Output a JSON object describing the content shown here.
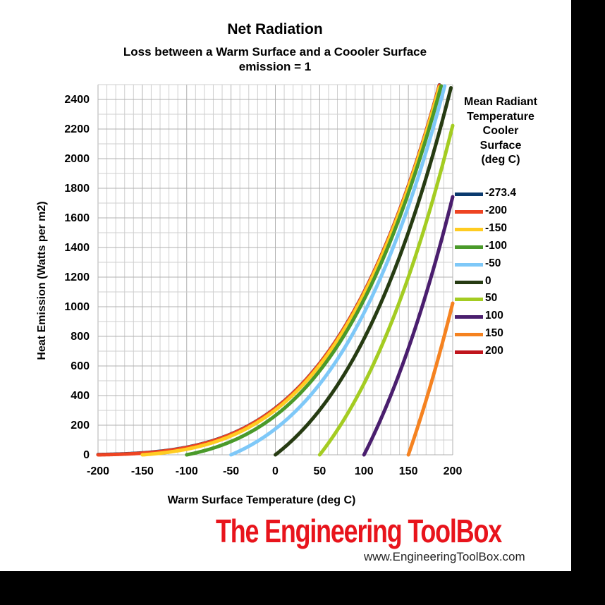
{
  "chart_data": {
    "type": "line",
    "title": "Net Radiation",
    "subtitle": "Loss between a Warm Surface and a Coooler Surface",
    "subtitle2": "emission = 1",
    "xlabel": "Warm Surface Temperature (deg C)",
    "ylabel": "Heat Emission (Watts per m2)",
    "xlim": [
      -200,
      200
    ],
    "ylim": [
      0,
      2500
    ],
    "x_ticks": [
      "-200",
      "-150",
      "-100",
      "-50",
      "0",
      "50",
      "100",
      "150",
      "200"
    ],
    "y_ticks": [
      "0",
      "200",
      "400",
      "600",
      "800",
      "1000",
      "1200",
      "1400",
      "1600",
      "1800",
      "2000",
      "2200",
      "2400"
    ],
    "grid": true,
    "legend_title": [
      "Mean Radiant",
      "Temperature",
      "Cooler",
      "Surface",
      "(deg C)"
    ],
    "legend_position": "right",
    "emissivity": 1,
    "series": [
      {
        "name": "-273.4",
        "cooler_temp_c": -273.4,
        "color": "#0a3a6e"
      },
      {
        "name": "-200",
        "cooler_temp_c": -200,
        "color": "#ee4422"
      },
      {
        "name": "-150",
        "cooler_temp_c": -150,
        "color": "#ffcc22"
      },
      {
        "name": "-100",
        "cooler_temp_c": -100,
        "color": "#4a9a2a"
      },
      {
        "name": "-50",
        "cooler_temp_c": -50,
        "color": "#7ec8f8"
      },
      {
        "name": "0",
        "cooler_temp_c": 0,
        "color": "#263b12"
      },
      {
        "name": "50",
        "cooler_temp_c": 50,
        "color": "#a4cc22"
      },
      {
        "name": "100",
        "cooler_temp_c": 100,
        "color": "#4a1e6e"
      },
      {
        "name": "150",
        "cooler_temp_c": 150,
        "color": "#f58220"
      },
      {
        "name": "200",
        "cooler_temp_c": 200,
        "color": "#c0141c"
      }
    ]
  },
  "branding": {
    "name": "The Engineering ToolBox",
    "url": "www.EngineeringToolBox.com"
  }
}
